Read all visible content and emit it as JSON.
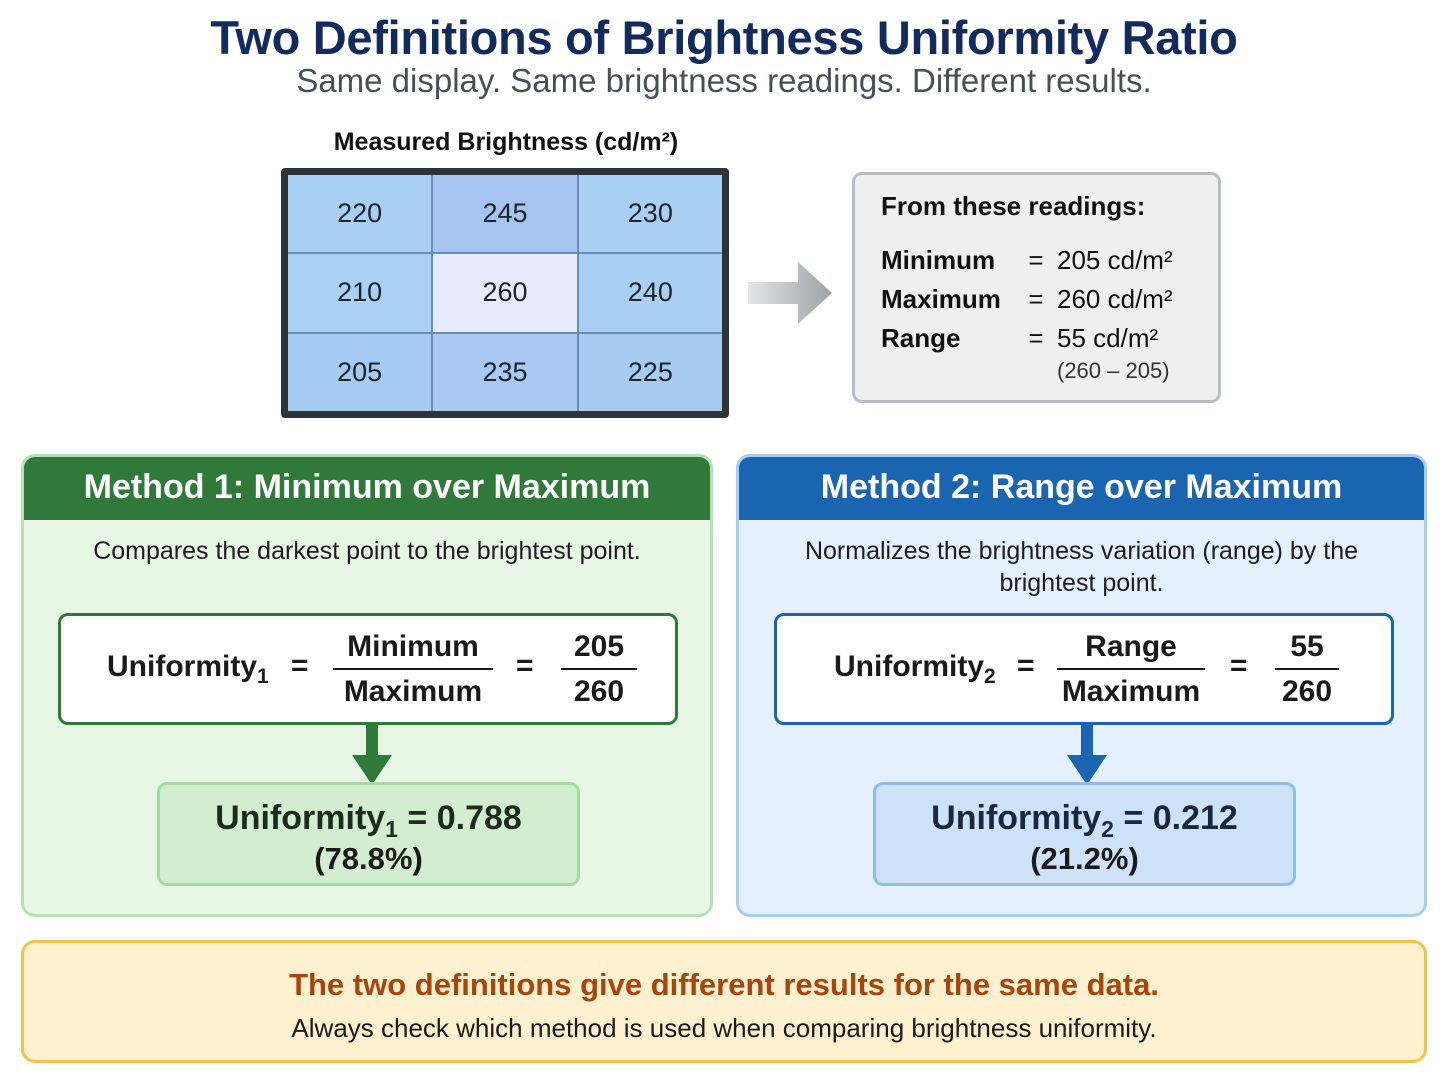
{
  "header": {
    "title": "Two Definitions of Brightness Uniformity Ratio",
    "subtitle": "Same display. Same brightness readings. Different results."
  },
  "grid": {
    "caption": "Measured Brightness (cd/m²)",
    "cells": [
      "220",
      "245",
      "230",
      "210",
      "260",
      "240",
      "205",
      "235",
      "225"
    ],
    "cell_colors": [
      "#a9cff3",
      "#a6c4f0",
      "#a9cff3",
      "#aad0f3",
      "#e6ecfb",
      "#a9cff3",
      "#a6cbf2",
      "#a9c9f2",
      "#a8cbf2"
    ]
  },
  "readings": {
    "title": "From these readings:",
    "rows": [
      {
        "label": "Minimum",
        "eq": "=",
        "value": "205 cd/m²"
      },
      {
        "label": "Maximum",
        "eq": "=",
        "value": "260 cd/m²"
      },
      {
        "label": "Range",
        "eq": "=",
        "value": "55 cd/m²"
      }
    ],
    "range_note": "(260 – 205)"
  },
  "method1": {
    "title": "Method 1: Minimum over Maximum",
    "description": "Compares the darkest point to the brightest point.",
    "lhs": "Uniformity",
    "lhs_sub": "1",
    "eq1": "=",
    "frac_num": "Minimum",
    "frac_den": "Maximum",
    "eq2": "=",
    "val_num": "205",
    "val_den": "260",
    "result_label": "Uniformity",
    "result_sub": "1",
    "result_value": "= 0.788",
    "result_pct": "(78.8%)",
    "accent": "#2f7a3a"
  },
  "method2": {
    "title": "Method 2: Range over Maximum",
    "description": "Normalizes the brightness variation (range) by the brightest point.",
    "lhs": "Uniformity",
    "lhs_sub": "2",
    "eq1": "=",
    "frac_num": "Range",
    "frac_den": "Maximum",
    "eq2": "=",
    "val_num": "55",
    "val_den": "260",
    "result_label": "Uniformity",
    "result_sub": "2",
    "result_value": "= 0.212",
    "result_pct": "(21.2%)",
    "accent": "#1a65b1"
  },
  "note": {
    "main": "The two definitions give different results for the same data.",
    "sub": "Always check which method is used when comparing brightness uniformity."
  }
}
